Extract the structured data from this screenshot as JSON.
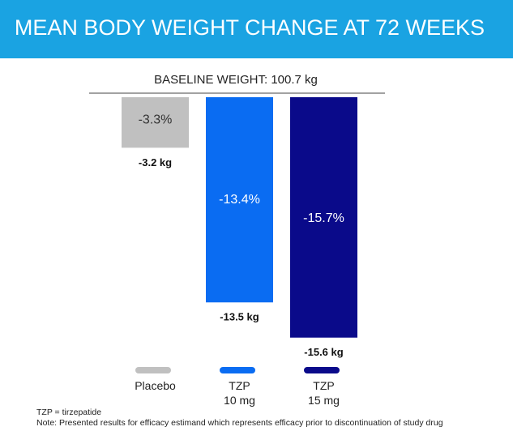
{
  "chart_data": {
    "type": "bar",
    "title": "MEAN BODY WEIGHT CHANGE AT 72 WEEKS",
    "subtitle": "BASELINE WEIGHT: 100.7 kg",
    "categories": [
      "Placebo",
      "TZP\n10 mg",
      "TZP\n15 mg"
    ],
    "values": [
      -3.3,
      -13.4,
      -15.7
    ],
    "value_labels": [
      "-3.3%",
      "-13.4%",
      "-15.7%"
    ],
    "colors": [
      "#c0c0c0",
      "#0a6cf2",
      "#0a0a8a"
    ],
    "annotations": [
      "-3.2 kg",
      "-13.5 kg",
      "-15.6 kg"
    ],
    "footnotes": [
      "TZP = tirzepatide",
      "Note: Presented results for efficacy estimand which represents efficacy prior to discontinuation of study drug"
    ]
  }
}
